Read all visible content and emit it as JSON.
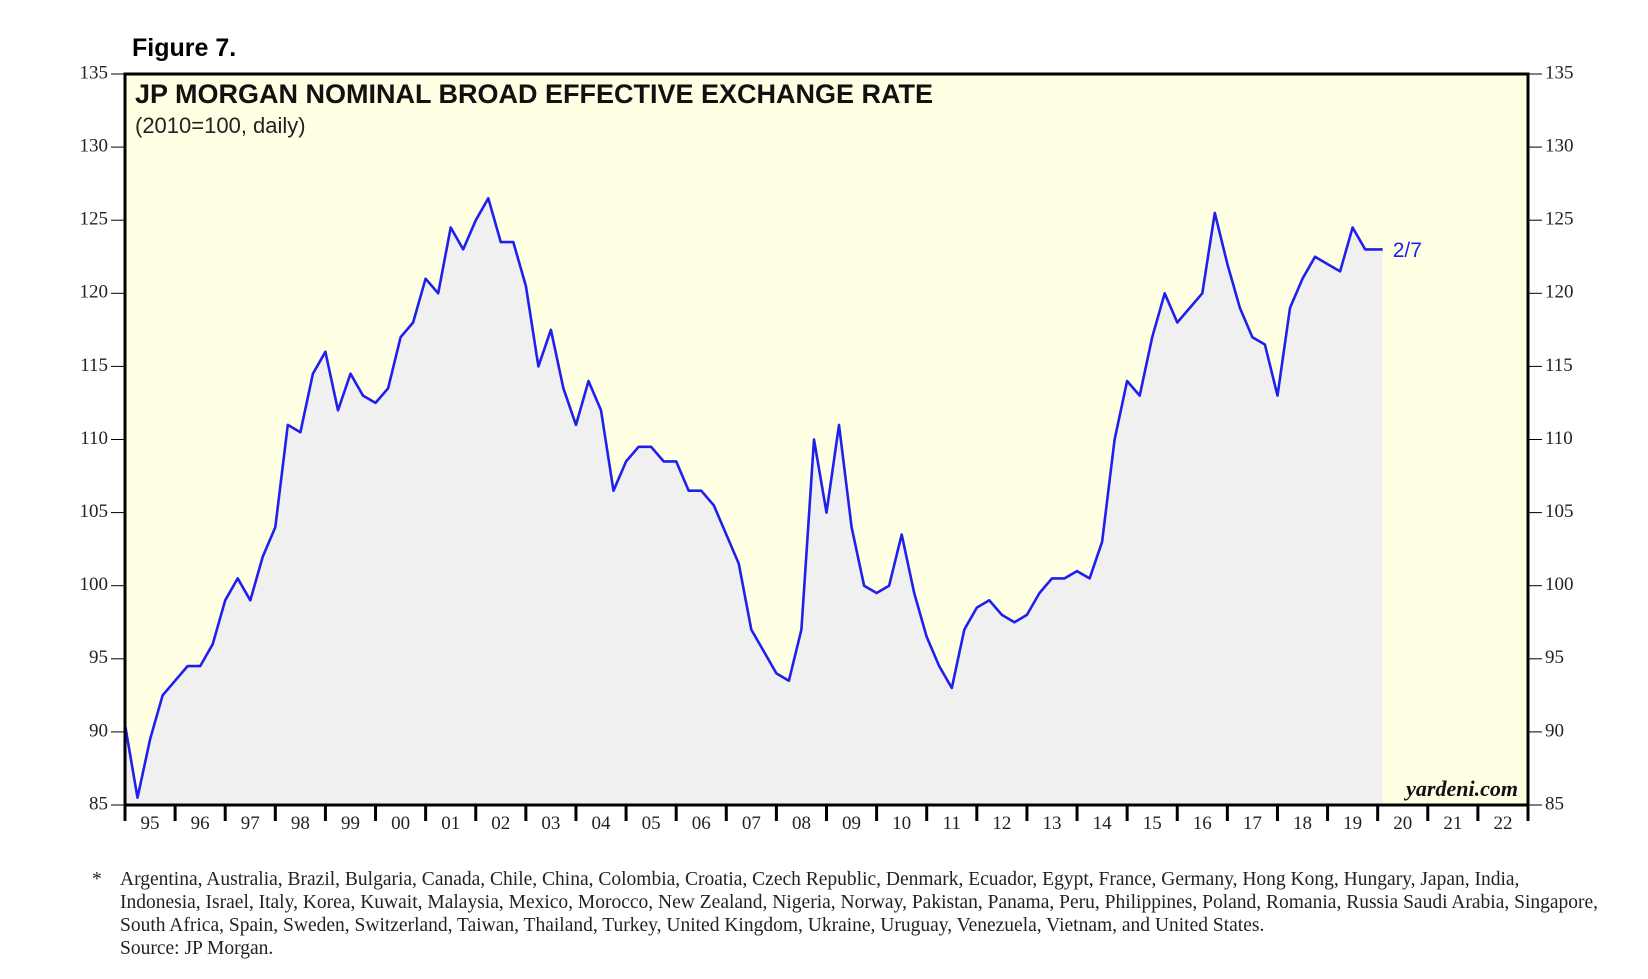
{
  "chart_data": {
    "type": "line",
    "figure_label": "Figure 7.",
    "title": "JP MORGAN NOMINAL BROAD EFFECTIVE EXCHANGE RATE",
    "subtitle": "(2010=100, daily)",
    "end_annotation": "2/7",
    "watermark": "yardeni.com",
    "footnote_marker": "*",
    "footnote": "Argentina, Australia, Brazil, Bulgaria, Canada, Chile, China, Colombia, Croatia, Czech Republic, Denmark, Ecuador, Egypt, France, Germany, Hong Kong, Hungary, Japan, India, Indonesia, Israel, Italy, Korea, Kuwait, Malaysia, Mexico, Morocco, New Zealand, Nigeria, Norway, Pakistan, Panama, Peru, Philippines, Poland, Romania, Russia Saudi Arabia, Singapore, South Africa, Spain, Sweden, Switzerland, Taiwan, Thailand, Turkey, United Kingdom, Ukraine, Uruguay, Venezuela, Vietnam, and United States.",
    "source": "Source: JP Morgan.",
    "color": "#1f1fef",
    "area_color": "#f0f0f0",
    "background": "#ffffe3",
    "xlim": [
      1995,
      2023
    ],
    "ylim": [
      85,
      135
    ],
    "yticks": [
      85,
      90,
      95,
      100,
      105,
      110,
      115,
      120,
      125,
      130,
      135
    ],
    "xticks": [
      {
        "value": 1995.5,
        "label": "95"
      },
      {
        "value": 1996.5,
        "label": "96"
      },
      {
        "value": 1997.5,
        "label": "97"
      },
      {
        "value": 1998.5,
        "label": "98"
      },
      {
        "value": 1999.5,
        "label": "99"
      },
      {
        "value": 2000.5,
        "label": "00"
      },
      {
        "value": 2001.5,
        "label": "01"
      },
      {
        "value": 2002.5,
        "label": "02"
      },
      {
        "value": 2003.5,
        "label": "03"
      },
      {
        "value": 2004.5,
        "label": "04"
      },
      {
        "value": 2005.5,
        "label": "05"
      },
      {
        "value": 2006.5,
        "label": "06"
      },
      {
        "value": 2007.5,
        "label": "07"
      },
      {
        "value": 2008.5,
        "label": "08"
      },
      {
        "value": 2009.5,
        "label": "09"
      },
      {
        "value": 2010.5,
        "label": "10"
      },
      {
        "value": 2011.5,
        "label": "11"
      },
      {
        "value": 2012.5,
        "label": "12"
      },
      {
        "value": 2013.5,
        "label": "13"
      },
      {
        "value": 2014.5,
        "label": "14"
      },
      {
        "value": 2015.5,
        "label": "15"
      },
      {
        "value": 2016.5,
        "label": "16"
      },
      {
        "value": 2017.5,
        "label": "17"
      },
      {
        "value": 2018.5,
        "label": "18"
      },
      {
        "value": 2019.5,
        "label": "19"
      },
      {
        "value": 2020.5,
        "label": "20"
      },
      {
        "value": 2021.5,
        "label": "21"
      },
      {
        "value": 2022.5,
        "label": "22"
      }
    ],
    "x": [
      1995.0,
      1995.25,
      1995.5,
      1995.75,
      1996.0,
      1996.25,
      1996.5,
      1996.75,
      1997.0,
      1997.25,
      1997.5,
      1997.75,
      1998.0,
      1998.25,
      1998.5,
      1998.75,
      1999.0,
      1999.25,
      1999.5,
      1999.75,
      2000.0,
      2000.25,
      2000.5,
      2000.75,
      2001.0,
      2001.25,
      2001.5,
      2001.75,
      2002.0,
      2002.25,
      2002.5,
      2002.75,
      2003.0,
      2003.25,
      2003.5,
      2003.75,
      2004.0,
      2004.25,
      2004.5,
      2004.75,
      2005.0,
      2005.25,
      2005.5,
      2005.75,
      2006.0,
      2006.25,
      2006.5,
      2006.75,
      2007.0,
      2007.25,
      2007.5,
      2007.75,
      2008.0,
      2008.25,
      2008.5,
      2008.75,
      2009.0,
      2009.25,
      2009.5,
      2009.75,
      2010.0,
      2010.25,
      2010.5,
      2010.75,
      2011.0,
      2011.25,
      2011.5,
      2011.75,
      2012.0,
      2012.25,
      2012.5,
      2012.75,
      2013.0,
      2013.25,
      2013.5,
      2013.75,
      2014.0,
      2014.25,
      2014.5,
      2014.75,
      2015.0,
      2015.25,
      2015.5,
      2015.75,
      2016.0,
      2016.25,
      2016.5,
      2016.75,
      2017.0,
      2017.25,
      2017.5,
      2017.75,
      2018.0,
      2018.25,
      2018.5,
      2018.75,
      2019.0,
      2019.25,
      2019.5,
      2019.75,
      2020.1
    ],
    "values": [
      90.5,
      85.5,
      89.5,
      92.5,
      93.5,
      94.5,
      94.5,
      96,
      99,
      100.5,
      99,
      102,
      104,
      111,
      110.5,
      114.5,
      116,
      112,
      114.5,
      113,
      112.5,
      113.5,
      117,
      118,
      121,
      120,
      124.5,
      123,
      125,
      126.5,
      123.5,
      123.5,
      120.5,
      115,
      117.5,
      113.5,
      111,
      114,
      112,
      106.5,
      108.5,
      109.5,
      109.5,
      108.5,
      108.5,
      106.5,
      106.5,
      105.5,
      103.5,
      101.5,
      97,
      95.5,
      94,
      93.5,
      97,
      110,
      105,
      111,
      104,
      100,
      99.5,
      100,
      103.5,
      99.5,
      96.5,
      94.5,
      93,
      97,
      98.5,
      99,
      98,
      97.5,
      98,
      99.5,
      100.5,
      100.5,
      101,
      100.5,
      103,
      110,
      114,
      113,
      117,
      120,
      118,
      119,
      120,
      125.5,
      122,
      119,
      117,
      116.5,
      113,
      119,
      121,
      122.5,
      122,
      121.5,
      124.5,
      123,
      123
    ]
  }
}
